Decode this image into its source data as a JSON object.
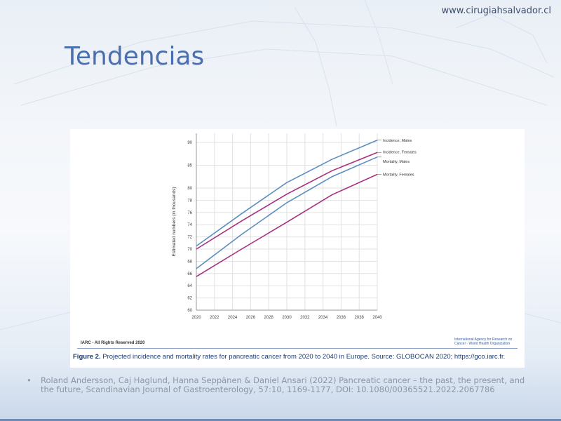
{
  "slide": {
    "site_url": "www.cirugiahsalvador.cl",
    "title": "Tendencias",
    "reference": "Roland Andersson, Caj Haglund, Hanna Seppänen & Daniel Ansari (2022) Pancreatic cancer – the past, the present, and the future, Scandinavian Journal of Gastroenterology, 57:10, 1169-1177, DOI: 10.1080/00365521.2022.2067786",
    "bullet": "•"
  },
  "figure": {
    "footer_left": "IARC - All Rights Reserved 2020",
    "footer_right": "International Agency for Research on Cancer · World Health Organization",
    "caption_label": "Figure 2.",
    "caption_text": "Projected incidence and mortality rates for pancreatic cancer from 2020 to 2040 in Europe. Source: GLOBOCAN 2020; https://gco.iarc.fr."
  },
  "colors": {
    "blue": "#5b8ec0",
    "purple": "#a8307f"
  },
  "chart_data": {
    "type": "line",
    "title": "",
    "xlabel": "",
    "ylabel": "Estimated numbers (in thousands)",
    "xlim": [
      2020,
      2040
    ],
    "ylim": [
      60,
      92
    ],
    "x_ticks": [
      2020,
      2022,
      2024,
      2026,
      2028,
      2030,
      2032,
      2034,
      2036,
      2038,
      2040
    ],
    "y_ticks": [
      60,
      62,
      64,
      66,
      68,
      70,
      72,
      74,
      76,
      78,
      80,
      85,
      90
    ],
    "y_breaks": [
      60,
      80,
      92
    ],
    "grid": true,
    "x": [
      2020,
      2025,
      2030,
      2035,
      2040
    ],
    "series": [
      {
        "name": "Incidence, Males",
        "color": "#5b8ec0",
        "values": [
          70.5,
          75.8,
          81.2,
          86.3,
          90.5
        ]
      },
      {
        "name": "Incidence, Females",
        "color": "#a8307f",
        "values": [
          70.0,
          74.6,
          79.0,
          83.8,
          87.8
        ]
      },
      {
        "name": "Mortality, Males",
        "color": "#5b8ec0",
        "values": [
          66.8,
          72.4,
          77.6,
          82.5,
          86.8
        ]
      },
      {
        "name": "Mortality, Females",
        "color": "#a8307f",
        "values": [
          65.5,
          70.0,
          74.4,
          78.9,
          83.0
        ]
      }
    ]
  }
}
